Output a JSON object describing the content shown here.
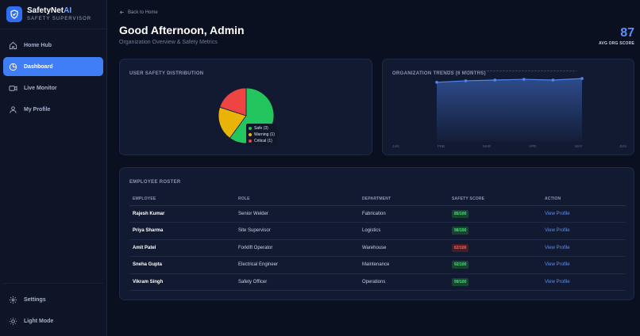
{
  "brand": {
    "title_main": "SafetyNet",
    "title_accent": "AI",
    "subtitle": "SAFETY SUPERVISOR"
  },
  "nav": {
    "items": [
      {
        "label": "Home Hub",
        "icon": "home-icon"
      },
      {
        "label": "Dashboard",
        "icon": "dashboard-icon",
        "active": true
      },
      {
        "label": "Live Monitor",
        "icon": "camera-icon"
      },
      {
        "label": "My Profile",
        "icon": "user-icon"
      }
    ],
    "bottom": [
      {
        "label": "Settings",
        "icon": "gear-icon"
      },
      {
        "label": "Light Mode",
        "icon": "sun-icon"
      }
    ]
  },
  "header": {
    "back_label": "Back to Home",
    "greeting": "Good Afternoon, Admin",
    "subtitle": "Organization Overview & Safety Metrics",
    "score_value": "87",
    "score_label": "AVG ORG SCORE"
  },
  "distribution": {
    "title": "USER SAFETY DISTRIBUTION",
    "legend": [
      {
        "label": "Safe (3)",
        "color": "#22c55e"
      },
      {
        "label": "Warning (1)",
        "color": "#eab308"
      },
      {
        "label": "Critical (1)",
        "color": "#ef4444"
      }
    ]
  },
  "trends": {
    "title": "ORGANIZATION TRENDS (6 MONTHS)"
  },
  "roster": {
    "title": "EMPLOYEE ROSTER",
    "columns": [
      "EMPLOYEE",
      "ROLE",
      "DEPARTMENT",
      "SAFETY SCORE",
      "ACTION"
    ],
    "rows": [
      {
        "name": "Rajesh Kumar",
        "role": "Senior Welder",
        "department": "Fabrication",
        "score": "85/100",
        "status": "good",
        "action": "View Profile"
      },
      {
        "name": "Priya Sharma",
        "role": "Site Supervisor",
        "department": "Logistics",
        "score": "98/100",
        "status": "good",
        "action": "View Profile"
      },
      {
        "name": "Amit Patel",
        "role": "Forklift Operator",
        "department": "Warehouse",
        "score": "62/100",
        "status": "bad",
        "action": "View Profile"
      },
      {
        "name": "Sneha Gupta",
        "role": "Electrical Engineer",
        "department": "Maintenance",
        "score": "92/100",
        "status": "good",
        "action": "View Profile"
      },
      {
        "name": "Vikram Singh",
        "role": "Safety Officer",
        "department": "Operations",
        "score": "99/100",
        "status": "good",
        "action": "View Profile"
      }
    ]
  },
  "chart_data": [
    {
      "type": "pie",
      "title": "USER SAFETY DISTRIBUTION",
      "categories": [
        "Safe",
        "Warning",
        "Critical"
      ],
      "values": [
        3,
        1,
        1
      ],
      "colors": [
        "#22c55e",
        "#eab308",
        "#ef4444"
      ],
      "legend": "overlay-bottom-right"
    },
    {
      "type": "area",
      "title": "ORGANIZATION TRENDS (6 MONTHS)",
      "categories": [
        "JAN",
        "FEB",
        "MAR",
        "APR",
        "MAY",
        "JUN"
      ],
      "series": [
        {
          "values": [
            80,
            82,
            83,
            84,
            83,
            85
          ]
        }
      ],
      "ylim": [
        0,
        100
      ],
      "target": 95,
      "grid": false,
      "accent": "#4f86f7"
    }
  ],
  "colors": {
    "accent": "#3f7ef7",
    "safe": "#22c55e",
    "warning": "#eab308",
    "critical": "#ef4444"
  }
}
